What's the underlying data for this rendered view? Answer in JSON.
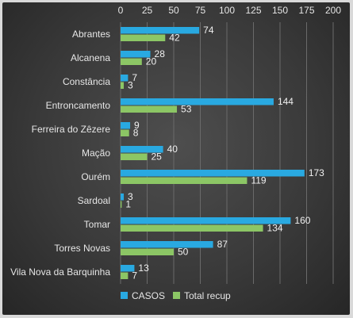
{
  "chart_data": {
    "type": "bar",
    "orientation": "horizontal",
    "categories": [
      "Abrantes",
      "Alcanena",
      "Constância",
      "Entroncamento",
      "Ferreira do Zêzere",
      "Mação",
      "Ourém",
      "Sardoal",
      "Tomar",
      "Torres Novas",
      "Vila Nova da Barquinha"
    ],
    "series": [
      {
        "name": "CASOS",
        "color": "#29a9e1",
        "values": [
          74,
          28,
          7,
          144,
          9,
          40,
          173,
          3,
          160,
          87,
          13
        ]
      },
      {
        "name": "Total recup",
        "color": "#8cc665",
        "values": [
          42,
          20,
          3,
          53,
          8,
          25,
          119,
          1,
          134,
          50,
          7
        ]
      }
    ],
    "xlim": [
      0,
      200
    ],
    "xticks": [
      0,
      25,
      50,
      75,
      100,
      125,
      150,
      175,
      200
    ],
    "x_axis_position": "top",
    "grid": true,
    "legend_position": "bottom",
    "data_labels": true
  }
}
